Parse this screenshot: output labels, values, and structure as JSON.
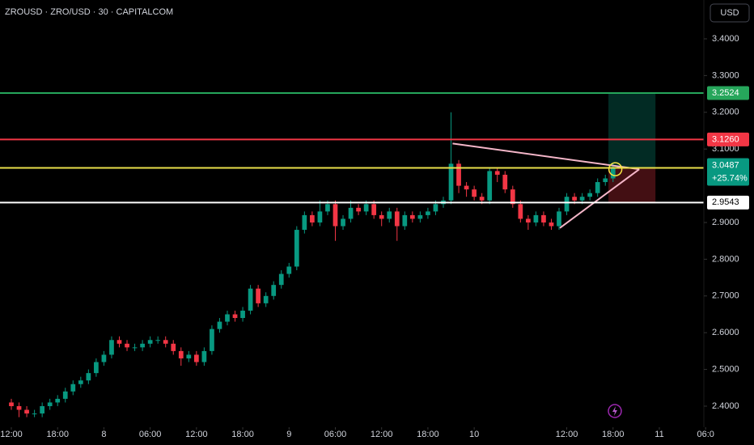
{
  "chart_data": {
    "type": "candlestick",
    "title": "ZROUSD · ZRO/USD · 30 · CAPITALCOM",
    "currency": "USD",
    "up_color": "#089981",
    "down_color": "#f23645",
    "x": [
      0,
      1,
      2,
      3,
      4,
      5,
      6,
      7,
      8,
      9,
      10,
      11,
      12,
      13,
      14,
      15,
      16,
      17,
      18,
      19,
      20,
      21,
      22,
      23,
      24,
      25,
      26,
      27,
      28,
      29,
      30,
      31,
      32,
      33,
      34,
      35,
      36,
      37,
      38,
      39,
      40,
      41,
      42,
      43,
      44,
      45,
      46,
      47,
      48,
      49,
      50,
      51,
      52,
      53,
      54,
      55,
      56,
      57,
      58,
      59,
      60,
      61,
      62,
      63,
      64,
      65,
      66,
      67,
      68,
      69,
      70,
      71,
      72,
      73,
      74,
      75,
      76,
      77,
      78
    ],
    "open": [
      2.41,
      2.4,
      2.39,
      2.38,
      2.38,
      2.4,
      2.41,
      2.42,
      2.44,
      2.46,
      2.47,
      2.49,
      2.52,
      2.54,
      2.58,
      2.57,
      2.56,
      2.56,
      2.57,
      2.58,
      2.58,
      2.57,
      2.55,
      2.53,
      2.54,
      2.52,
      2.55,
      2.61,
      2.63,
      2.65,
      2.64,
      2.66,
      2.72,
      2.68,
      2.7,
      2.73,
      2.76,
      2.78,
      2.88,
      2.92,
      2.9,
      2.93,
      2.95,
      2.89,
      2.91,
      2.94,
      2.93,
      2.95,
      2.92,
      2.91,
      2.93,
      2.89,
      2.92,
      2.91,
      2.92,
      2.93,
      2.95,
      2.96,
      3.06,
      3.0,
      2.99,
      2.97,
      2.96,
      3.04,
      3.03,
      2.99,
      2.95,
      2.91,
      2.9,
      2.92,
      2.9,
      2.89,
      2.93,
      2.97,
      2.96,
      2.97,
      2.98,
      3.01,
      3.02
    ],
    "high": [
      2.42,
      2.41,
      2.4,
      2.39,
      2.41,
      2.42,
      2.43,
      2.45,
      2.47,
      2.48,
      2.5,
      2.53,
      2.55,
      2.59,
      2.59,
      2.58,
      2.57,
      2.58,
      2.59,
      2.59,
      2.59,
      2.58,
      2.56,
      2.55,
      2.55,
      2.56,
      2.62,
      2.64,
      2.66,
      2.66,
      2.67,
      2.73,
      2.73,
      2.71,
      2.74,
      2.77,
      2.79,
      2.89,
      2.93,
      2.93,
      2.96,
      2.96,
      2.96,
      2.92,
      2.96,
      2.95,
      2.96,
      2.96,
      2.93,
      2.94,
      2.94,
      2.93,
      2.93,
      2.93,
      2.94,
      2.96,
      2.97,
      3.2,
      3.07,
      3.01,
      3.0,
      2.98,
      3.05,
      3.05,
      3.04,
      3.0,
      2.96,
      2.92,
      2.93,
      2.93,
      2.91,
      2.94,
      2.98,
      2.98,
      2.98,
      2.99,
      3.02,
      3.03,
      3.06
    ],
    "low": [
      2.39,
      2.37,
      2.37,
      2.37,
      2.37,
      2.39,
      2.4,
      2.41,
      2.43,
      2.45,
      2.46,
      2.48,
      2.51,
      2.53,
      2.56,
      2.55,
      2.55,
      2.55,
      2.56,
      2.57,
      2.56,
      2.54,
      2.51,
      2.52,
      2.51,
      2.51,
      2.54,
      2.6,
      2.62,
      2.63,
      2.63,
      2.65,
      2.67,
      2.67,
      2.69,
      2.72,
      2.75,
      2.77,
      2.87,
      2.89,
      2.89,
      2.92,
      2.85,
      2.88,
      2.9,
      2.92,
      2.92,
      2.91,
      2.89,
      2.9,
      2.85,
      2.88,
      2.9,
      2.9,
      2.91,
      2.92,
      2.94,
      2.95,
      2.98,
      2.97,
      2.96,
      2.95,
      2.95,
      3.01,
      2.98,
      2.94,
      2.9,
      2.88,
      2.89,
      2.89,
      2.88,
      2.88,
      2.92,
      2.95,
      2.95,
      2.96,
      2.97,
      3.0,
      3.01
    ],
    "close": [
      2.4,
      2.39,
      2.38,
      2.38,
      2.4,
      2.41,
      2.42,
      2.44,
      2.46,
      2.47,
      2.49,
      2.52,
      2.54,
      2.58,
      2.57,
      2.56,
      2.56,
      2.57,
      2.58,
      2.58,
      2.57,
      2.55,
      2.53,
      2.54,
      2.52,
      2.55,
      2.61,
      2.63,
      2.65,
      2.64,
      2.66,
      2.72,
      2.68,
      2.7,
      2.73,
      2.76,
      2.78,
      2.88,
      2.92,
      2.9,
      2.93,
      2.95,
      2.89,
      2.91,
      2.94,
      2.93,
      2.95,
      2.92,
      2.91,
      2.93,
      2.89,
      2.92,
      2.91,
      2.92,
      2.93,
      2.95,
      2.96,
      3.06,
      3.0,
      2.99,
      2.97,
      2.96,
      3.04,
      3.03,
      2.99,
      2.95,
      2.91,
      2.9,
      2.92,
      2.9,
      2.89,
      2.93,
      2.97,
      2.96,
      2.97,
      2.98,
      3.01,
      3.02,
      3.05
    ],
    "xlim": [
      -1.468,
      89.77
    ],
    "ylim": [
      2.3427,
      3.5057
    ],
    "xticks": [
      {
        "value": 0,
        "label": "12:00"
      },
      {
        "value": 6,
        "label": "18:00"
      },
      {
        "value": 12,
        "label": "8"
      },
      {
        "value": 18,
        "label": "06:00"
      },
      {
        "value": 24,
        "label": "12:00"
      },
      {
        "value": 30,
        "label": "18:00"
      },
      {
        "value": 36,
        "label": "9"
      },
      {
        "value": 42,
        "label": "06:00"
      },
      {
        "value": 48,
        "label": "12:00"
      },
      {
        "value": 54,
        "label": "18:00"
      },
      {
        "value": 60,
        "label": "10"
      },
      {
        "value": 72,
        "label": "12:00"
      },
      {
        "value": 78,
        "label": "18:00"
      },
      {
        "value": 84,
        "label": "11"
      },
      {
        "value": 90,
        "label": "06:0"
      }
    ],
    "yticks": [
      {
        "value": 3.4,
        "label": "3.4000"
      },
      {
        "value": 3.3,
        "label": "3.3000"
      },
      {
        "value": 3.2,
        "label": "3.2000"
      },
      {
        "value": 3.1,
        "label": "3.1000"
      },
      {
        "value": 2.9,
        "label": "2.9000"
      },
      {
        "value": 2.8,
        "label": "2.8000"
      },
      {
        "value": 2.7,
        "label": "2.7000"
      },
      {
        "value": 2.6,
        "label": "2.6000"
      },
      {
        "value": 2.5,
        "label": "2.5000"
      },
      {
        "value": 2.4,
        "label": "2.4000"
      }
    ],
    "levels": [
      {
        "value": 3.2524,
        "color": "#26a65b"
      },
      {
        "value": {
          "value": 3.126,
          "label": "3.1260"
        },
        "color": "#f23645"
      },
      {
        "value": 3.0487,
        "color": "#e8e04a"
      },
      {
        "value": 2.9543,
        "color": "#ffffff"
      }
    ],
    "change_label": "+25.74%",
    "trendlines": [
      {
        "x": [
          57.2,
          81.4
        ],
        "y": [
          3.115,
          3.045
        ],
        "color": "#f4b6c8"
      },
      {
        "x": [
          71.1,
          81.4
        ],
        "y": [
          2.885,
          3.045
        ],
        "color": "#f4b6c8"
      }
    ],
    "position_x": [
      77.4,
      83.5
    ],
    "marker": {
      "x": 78.3,
      "y": 3.045
    }
  }
}
